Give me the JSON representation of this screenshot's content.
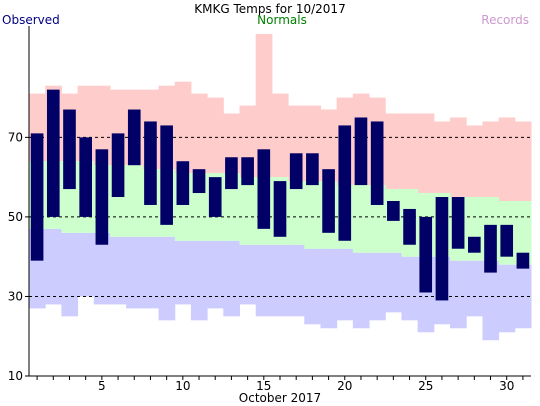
{
  "chart_data": {
    "type": "bar",
    "title": "KMKG Temps for 10/2017",
    "legend": {
      "observed": "Observed",
      "normals": "Normals",
      "records": "Records"
    },
    "colors": {
      "observed": "#000066",
      "normals": "#ccffcc",
      "record_high": "#ffcccc",
      "record_low": "#ccccff",
      "legend_observed": "#000080",
      "legend_normals": "#008000",
      "legend_records": "#cc99cc"
    },
    "xlabel": "October 2017",
    "ylabel": "",
    "xlim": [
      0.5,
      31.5
    ],
    "ylim": [
      10,
      98
    ],
    "x_ticks": [
      5,
      10,
      15,
      20,
      25,
      30
    ],
    "y_ticks": [
      10,
      30,
      50,
      70
    ],
    "grid_y": [
      30,
      50,
      70
    ],
    "days": [
      1,
      2,
      3,
      4,
      5,
      6,
      7,
      8,
      9,
      10,
      11,
      12,
      13,
      14,
      15,
      16,
      17,
      18,
      19,
      20,
      21,
      22,
      23,
      24,
      25,
      26,
      27,
      28,
      29,
      30,
      31
    ],
    "series": [
      {
        "name": "Observed High",
        "values": [
          71,
          82,
          77,
          70,
          67,
          71,
          77,
          74,
          73,
          64,
          62,
          60,
          65,
          65,
          67,
          59,
          66,
          66,
          62,
          73,
          75,
          74,
          54,
          52,
          50,
          55,
          55,
          45,
          48,
          48,
          41
        ]
      },
      {
        "name": "Observed Low",
        "values": [
          39,
          50,
          57,
          50,
          43,
          55,
          63,
          53,
          48,
          53,
          56,
          50,
          57,
          58,
          47,
          45,
          57,
          58,
          46,
          44,
          58,
          53,
          49,
          43,
          31,
          29,
          42,
          41,
          36,
          40,
          37
        ]
      },
      {
        "name": "Normal High",
        "values": [
          64,
          64,
          64,
          64,
          63,
          63,
          63,
          62,
          62,
          61,
          61,
          61,
          61,
          60,
          60,
          60,
          59,
          59,
          59,
          58,
          58,
          58,
          57,
          57,
          56,
          56,
          55,
          55,
          55,
          54,
          54
        ]
      },
      {
        "name": "Normal Low",
        "values": [
          47,
          47,
          46,
          46,
          46,
          45,
          45,
          45,
          45,
          44,
          44,
          44,
          44,
          43,
          43,
          43,
          43,
          42,
          42,
          42,
          41,
          41,
          41,
          40,
          40,
          40,
          39,
          39,
          39,
          38,
          38
        ]
      },
      {
        "name": "Record High",
        "values": [
          81,
          83,
          81,
          83,
          83,
          82,
          82,
          82,
          83,
          84,
          81,
          80,
          76,
          78,
          96,
          81,
          78,
          78,
          77,
          80,
          81,
          80,
          76,
          76,
          76,
          74,
          75,
          73,
          74,
          75,
          74
        ]
      },
      {
        "name": "Record Low",
        "values": [
          27,
          28,
          25,
          30,
          28,
          28,
          27,
          27,
          24,
          28,
          24,
          27,
          25,
          28,
          25,
          25,
          25,
          23,
          22,
          24,
          22,
          24,
          26,
          24,
          21,
          23,
          22,
          25,
          19,
          21,
          22
        ]
      }
    ]
  }
}
